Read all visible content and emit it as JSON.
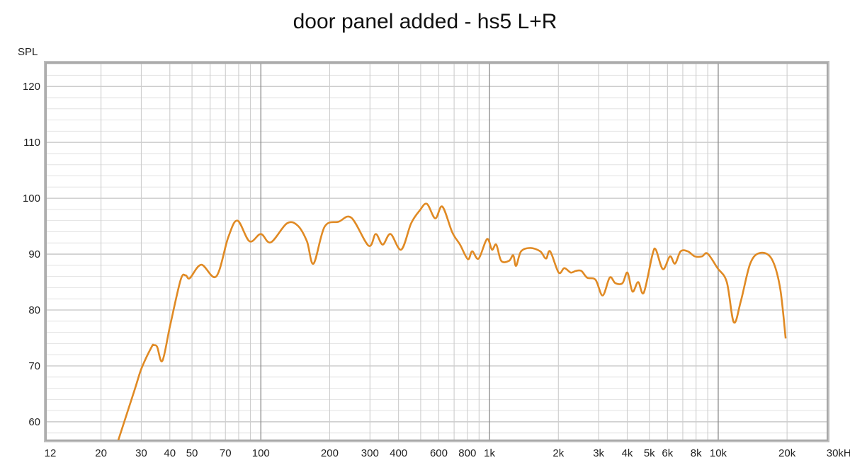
{
  "chart_data": {
    "type": "line",
    "title": "door panel added - hs5 L+R",
    "ylabel": "SPL",
    "xlabel": "",
    "xscale": "log",
    "xlim": [
      11.5,
      30000
    ],
    "ylim": [
      56.7,
      124.2
    ],
    "grid": true,
    "line_color": "#e08a24",
    "x_tick_labels": [
      {
        "value": 12,
        "label": "12"
      },
      {
        "value": 20,
        "label": "20"
      },
      {
        "value": 30,
        "label": "30"
      },
      {
        "value": 40,
        "label": "40"
      },
      {
        "value": 50,
        "label": "50"
      },
      {
        "value": 70,
        "label": "70"
      },
      {
        "value": 100,
        "label": "100"
      },
      {
        "value": 200,
        "label": "200"
      },
      {
        "value": 300,
        "label": "300"
      },
      {
        "value": 400,
        "label": "400"
      },
      {
        "value": 600,
        "label": "600"
      },
      {
        "value": 800,
        "label": "800"
      },
      {
        "value": 1000,
        "label": "1k"
      },
      {
        "value": 2000,
        "label": "2k"
      },
      {
        "value": 3000,
        "label": "3k"
      },
      {
        "value": 4000,
        "label": "4k"
      },
      {
        "value": 5000,
        "label": "5k"
      },
      {
        "value": 6000,
        "label": "6k"
      },
      {
        "value": 8000,
        "label": "8k"
      },
      {
        "value": 10000,
        "label": "10k"
      },
      {
        "value": 20000,
        "label": "20k"
      },
      {
        "value": 30000,
        "label": "30kHz"
      }
    ],
    "y_ticks": [
      60,
      70,
      80,
      90,
      100,
      110,
      120
    ],
    "series": [
      {
        "x": [
          23.8,
          28.1,
          30.1,
          33.3,
          34.0,
          35.2,
          37.1,
          40.1,
          44.6,
          46.9,
          48.9,
          54.9,
          63.8,
          72.0,
          79.0,
          89.2,
          100,
          110.5,
          130,
          145,
          159,
          170,
          190,
          219,
          249,
          296,
          318,
          341,
          369,
          411,
          454,
          495,
          532,
          579,
          622,
          687,
          743,
          804,
          840,
          896,
          975,
          1025,
          1070,
          1125,
          1217,
          1270,
          1306,
          1374,
          1508,
          1666,
          1765,
          1841,
          2006,
          2124,
          2265,
          2382,
          2520,
          2670,
          2908,
          3124,
          3355,
          3550,
          3813,
          4011,
          4217,
          4467,
          4725,
          5150,
          5335,
          5730,
          6150,
          6470,
          6850,
          7360,
          7900,
          8490,
          8980,
          9930,
          10900,
          11700,
          12560,
          13800,
          15200,
          17100,
          18620,
          19720
        ],
        "y": [
          56.7,
          65.8,
          69.6,
          73.4,
          73.7,
          73.4,
          70.9,
          77.2,
          85.4,
          86.2,
          85.7,
          88.1,
          86.0,
          93.0,
          96.0,
          92.3,
          93.6,
          92.1,
          95.5,
          95.1,
          92.3,
          88.3,
          94.9,
          95.8,
          96.5,
          91.5,
          93.6,
          91.7,
          93.6,
          90.8,
          95.5,
          97.8,
          99.0,
          96.4,
          98.5,
          93.9,
          91.7,
          89.1,
          90.5,
          89.2,
          92.7,
          90.8,
          91.7,
          88.8,
          88.8,
          89.8,
          87.9,
          90.5,
          91.1,
          90.5,
          89.2,
          90.5,
          86.7,
          87.5,
          86.7,
          87.0,
          87.0,
          85.8,
          85.4,
          82.6,
          85.8,
          84.8,
          84.8,
          86.7,
          83.3,
          85.0,
          83.1,
          89.8,
          90.8,
          87.3,
          89.6,
          88.3,
          90.5,
          90.5,
          89.6,
          89.6,
          90.1,
          87.5,
          85.0,
          77.8,
          81.6,
          88.3,
          90.2,
          89.2,
          84.1,
          74.9
        ]
      }
    ]
  }
}
